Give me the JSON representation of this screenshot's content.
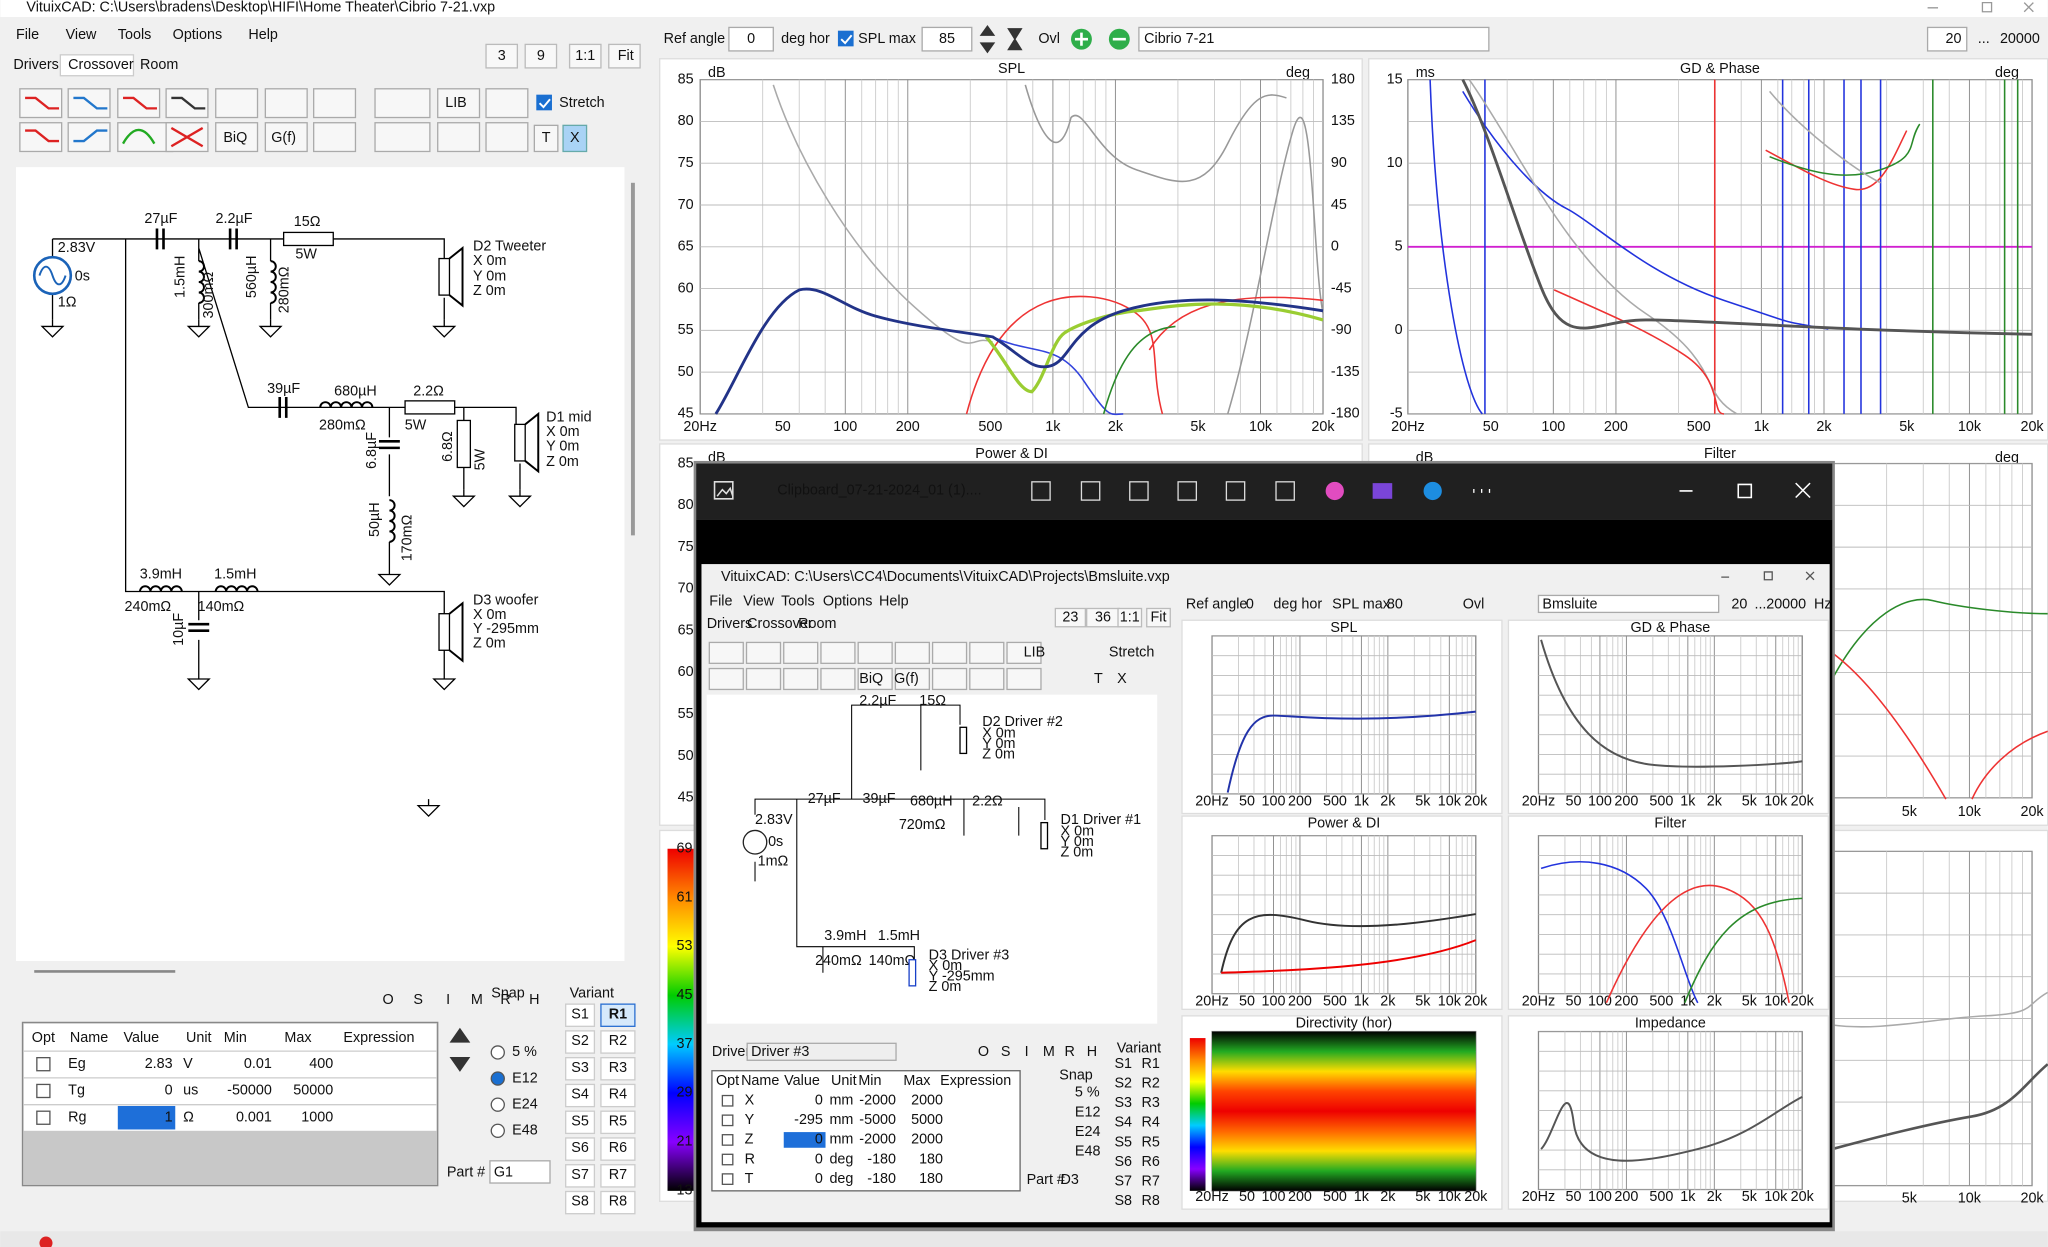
{
  "window": {
    "title": "VituixCAD: C:\\Users\\bradens\\Desktop\\HIFI\\Home Theater\\Cibrio 7-21.vxp",
    "menu": [
      "File",
      "View",
      "Tools",
      "Options",
      "Help"
    ],
    "tabs": [
      "Drivers",
      "Crossover",
      "Room"
    ],
    "view_buttons": [
      "3",
      "9",
      "1:1",
      "Fit"
    ],
    "toolbar": [
      "LIB",
      "BiQ",
      "G(f)",
      "T",
      "X"
    ],
    "stretch": "Stretch"
  },
  "top_bar": {
    "ref_angle": "Ref angle",
    "angle": "0",
    "deg_hor": "deg hor",
    "spl_max": "SPL max",
    "spl_value": "85",
    "ovl": "Ovl",
    "project": "Cibrio 7-21",
    "f_min": "20",
    "dots": "...",
    "f_max": "20000"
  },
  "schematic": {
    "labels": [
      "27µF",
      "2.2µF",
      "15Ω",
      "5W",
      "2.83V",
      "0s",
      "1Ω",
      "1.5mH",
      "300mΩ",
      "560µH",
      "280mΩ",
      "D2 Tweeter",
      "X 0m",
      "Y 0m",
      "Z 0m",
      "39µF",
      "680µH",
      "280mΩ",
      "2.2Ω",
      "5W",
      "6.8µF",
      "6.8Ω",
      "5W",
      "D1 mid",
      "X 0m",
      "Y 0m",
      "Z 0m",
      "50µH",
      "170mΩ",
      "3.9mH",
      "1.5mH",
      "240mΩ",
      "140mΩ",
      "10µF",
      "D3 woofer",
      "X 0m",
      "Y -295mm",
      "Z 0m"
    ]
  },
  "parameters": {
    "columns": [
      "Opt",
      "Name",
      "Value",
      "Unit",
      "Min",
      "Max",
      "Expression"
    ],
    "rows": [
      [
        "Eg",
        2.83,
        "V",
        0.01,
        400
      ],
      [
        "Tg",
        0,
        "us",
        -50000,
        50000
      ],
      [
        "Rg",
        1,
        "Ω",
        0.001,
        1000
      ]
    ]
  },
  "filters": [
    "O",
    "S",
    "I",
    "M",
    "R",
    "H"
  ],
  "snap": {
    "title": "Snap",
    "options": [
      "5 %",
      "E12",
      "E24",
      "E48"
    ]
  },
  "variant": {
    "title": "Variant",
    "s": [
      "S1",
      "S2",
      "S3",
      "S4",
      "S5",
      "S6",
      "S7",
      "S8"
    ],
    "r": [
      "R1",
      "R2",
      "R3",
      "R4",
      "R5",
      "R6",
      "R7",
      "R8"
    ]
  },
  "part": {
    "label": "Part #",
    "value": "G1"
  },
  "charts": {
    "spl": {
      "title": "SPL",
      "y_unit": "dB",
      "y2_unit": "deg",
      "yticks": [
        85,
        80,
        75,
        70,
        65,
        60,
        55,
        50,
        45
      ],
      "y2ticks": [
        180,
        135,
        90,
        45,
        0,
        -45,
        -90,
        -135,
        -180
      ],
      "xticks": [
        "20Hz",
        "50",
        "100",
        "200",
        "500",
        "1k",
        "2k",
        "5k",
        "10k",
        "20k"
      ]
    },
    "gd": {
      "title": "GD & Phase",
      "y_unit": "ms",
      "y2_unit": "deg",
      "yticks": [
        15,
        10,
        5,
        0,
        -5
      ],
      "xticks": [
        "20Hz",
        "50",
        "100",
        "200",
        "500",
        "1k",
        "2k",
        "5k",
        "10k",
        "20k"
      ]
    },
    "power": {
      "title": "Power & DI",
      "y_unit": "dB",
      "yticks": [
        85,
        80,
        75,
        70,
        65,
        60,
        55,
        50,
        45
      ]
    },
    "filter": {
      "title": "Filter",
      "y_unit": "dB",
      "y2_unit": "deg",
      "xticks": [
        "5k",
        "10k",
        "20k"
      ]
    },
    "colorbar": {
      "ticks": [
        69,
        61,
        53,
        45,
        37,
        29,
        21,
        13
      ]
    },
    "bottom_right": {
      "xticks": [
        "5k",
        "10k",
        "20k"
      ]
    }
  },
  "viewer": {
    "title": "Clipboard_07-21-2024_01 (1)....",
    "inner": {
      "title": "VituixCAD: C:\\Users\\CC4\\Documents\\VituixCAD\\Projects\\Bmsluite.vxp",
      "view_buttons": [
        "23",
        "36",
        "1:1",
        "Fit"
      ],
      "spl_value": "80",
      "project": "Bmsluite",
      "hz": "Hz",
      "driver_label": "Driver",
      "driver": "Driver #3",
      "chart_titles": [
        "SPL",
        "GD & Phase",
        "Power & DI",
        "Filter",
        "Directivity (hor)",
        "Impedance"
      ],
      "schematic_labels": [
        "2.2µF",
        "15Ω",
        "D2 Driver #2",
        "X 0m",
        "Y 0m",
        "Z 0m",
        "27µF",
        "39µF",
        "680µH",
        "720mΩ",
        "2.2Ω",
        "D1 Driver #1",
        "X 0m",
        "Y 0m",
        "Z 0m",
        "2.83V",
        "0s",
        "1mΩ",
        "3.9mH",
        "1.5mH",
        "240mΩ",
        "140mΩ",
        "D3 Driver #3",
        "X 0m",
        "Y -295mm",
        "Z 0m"
      ],
      "rows": [
        [
          "X",
          0,
          "mm",
          -2000,
          2000
        ],
        [
          "Y",
          -295,
          "mm",
          -5000,
          5000
        ],
        [
          "Z",
          0,
          "mm",
          -2000,
          2000
        ],
        [
          "R",
          0,
          "deg",
          -180,
          180
        ],
        [
          "T",
          0,
          "deg",
          -180,
          180
        ]
      ],
      "part": "D3"
    }
  }
}
